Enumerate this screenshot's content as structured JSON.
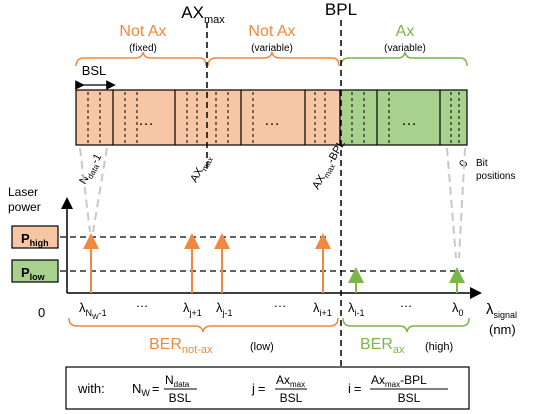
{
  "markers": {
    "ax_max": "AX",
    "ax_max_sub": "max",
    "bpl": "BPL"
  },
  "regions": [
    {
      "title": "Not Ax",
      "note": "(fixed)",
      "color": "#f0883f"
    },
    {
      "title": "Not Ax",
      "note": "(variable)",
      "color": "#f0883f"
    },
    {
      "title": "Ax",
      "note": "(variable)",
      "color": "#7ab648"
    }
  ],
  "bsl_label": "BSL",
  "ellipsis": "…",
  "bit_labels": {
    "n_data": "N",
    "n_data_sub": "data",
    "n_data_suffix": "-1",
    "ax_max": "AX",
    "ax_max_sub": "max",
    "ax_bpl": "AX",
    "ax_bpl_sub": "max",
    "ax_bpl_suffix": "-BPL",
    "zero": "0"
  },
  "bit_positions": [
    "Bit",
    "positions"
  ],
  "axis": {
    "y_label": [
      "Laser",
      "power"
    ],
    "origin": "0",
    "x_label": "λ",
    "x_label_sub": "signal",
    "x_unit": "(nm)"
  },
  "levels": {
    "high": "P",
    "high_sub": "high",
    "low": "P",
    "low_sub": "low"
  },
  "wavelengths": {
    "l_nw": "λ",
    "l_nw_sub": "N",
    "l_nw_subsub": "W",
    "l_nw_suffix": "-1",
    "l_j1": "λ",
    "l_j1_sub": "j+1",
    "l_j": "λ",
    "l_j_sub": "j-1",
    "l_i1": "λ",
    "l_i1_sub": "i+1",
    "l_im1": "λ",
    "l_im1_sub": "i-1",
    "l_0": "λ",
    "l_0_sub": "0"
  },
  "ber": {
    "notax": "BER",
    "notax_sub": "not-ax",
    "notax_note": "(low)",
    "ax": "BER",
    "ax_sub": "ax",
    "ax_note": "(high)"
  },
  "formula": {
    "with": "with:",
    "nw": "N",
    "nw_sub": "W",
    "eq": "=",
    "nw_num": "N",
    "nw_num_sub": "data",
    "nw_den": "BSL",
    "j": "j",
    "j_num": "Ax",
    "j_num_sub": "max",
    "j_den": "BSL",
    "i": "i",
    "i_num": "Ax",
    "i_num_sub": "max",
    "i_num_suffix": "-BPL",
    "i_den": "BSL"
  },
  "colors": {
    "orange": "#f0883f",
    "orange_fill": "#f7c6a5",
    "green": "#7ab648",
    "green_fill": "#a9d18e",
    "ghost": "#c8c8c8",
    "ink": "#000000"
  }
}
